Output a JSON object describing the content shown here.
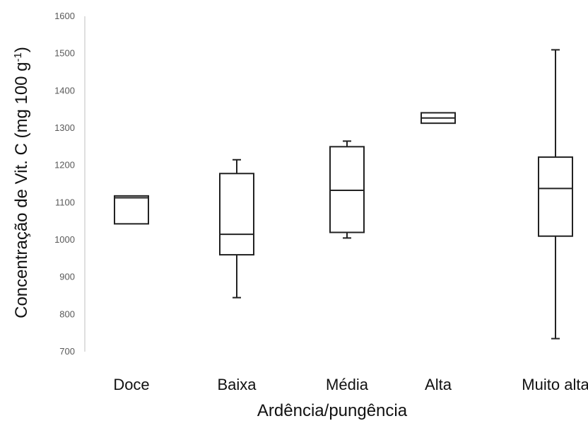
{
  "chart_data": {
    "type": "boxplot",
    "title": "",
    "xlabel": "Ardência/pungência",
    "ylabel_main": "Concentração de Vit. C (mg 100 g",
    "ylabel_sup": "-1",
    "ylabel_end": ")",
    "ylim": [
      700,
      1600
    ],
    "yticks": [
      "700",
      "800",
      "900",
      "1000",
      "1100",
      "1200",
      "1300",
      "1400",
      "1500",
      "1600"
    ],
    "grid": false,
    "categories": [
      "Doce",
      "Baixa",
      "Média",
      "Alta",
      "Muito alta"
    ],
    "boxes": [
      {
        "category": "Doce",
        "min": 1043,
        "q1": 1043,
        "median": 1113,
        "q3": 1118,
        "max": 1118
      },
      {
        "category": "Baixa",
        "min": 845,
        "q1": 960,
        "median": 1015,
        "q3": 1178,
        "max": 1215
      },
      {
        "category": "Média",
        "min": 1005,
        "q1": 1020,
        "median": 1133,
        "q3": 1250,
        "max": 1265
      },
      {
        "category": "Alta",
        "min": 1313,
        "q1": 1313,
        "median": 1327,
        "q3": 1341,
        "max": 1341
      },
      {
        "category": "Muito alta",
        "min": 735,
        "q1": 1010,
        "median": 1138,
        "q3": 1222,
        "max": 1510
      }
    ]
  }
}
